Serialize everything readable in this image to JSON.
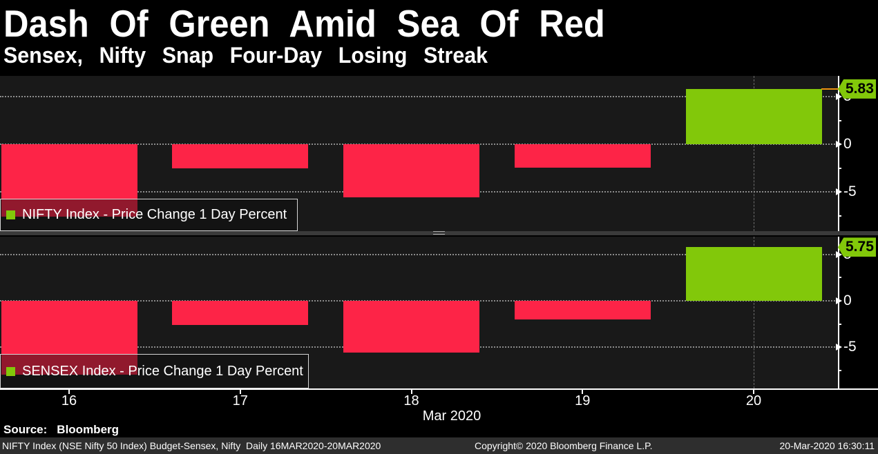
{
  "header": {
    "title": "Dash Of Green Amid Sea Of Red",
    "subtitle": "Sensex, Nifty Snap Four-Day Losing Streak"
  },
  "chart_data": [
    {
      "type": "bar",
      "name": "NIFTY",
      "legend": "NIFTY Index - Price Change 1 Day Percent",
      "categories": [
        "16",
        "17",
        "18",
        "19",
        "20"
      ],
      "values": [
        -7.61,
        -2.5,
        -5.56,
        -2.42,
        5.83
      ],
      "last_value_label": "5.83",
      "ylim": [
        -9.1,
        7.2
      ],
      "yticks": [
        5,
        0,
        -5
      ],
      "ytick_labels": [
        "5",
        "0",
        "-5"
      ],
      "minor_ticks": [
        2.5,
        -2.5,
        -7.5
      ],
      "highlight_index": 4,
      "marker_line": true,
      "grid": "dotted",
      "legend_position": "bottom-left",
      "xlabel": "Mar 2020",
      "ylabel": "Price Change 1 Day Percent"
    },
    {
      "type": "bar",
      "name": "SENSEX",
      "legend": "SENSEX Index - Price Change 1 Day Percent",
      "categories": [
        "16",
        "17",
        "18",
        "19",
        "20"
      ],
      "values": [
        -7.96,
        -2.58,
        -5.59,
        -2.01,
        5.75
      ],
      "last_value_label": "5.75",
      "ylim": [
        -9.41,
        6.89
      ],
      "yticks": [
        5,
        0,
        -5
      ],
      "ytick_labels": [
        "5",
        "0",
        "-5"
      ],
      "minor_ticks": [
        2.5,
        -2.5,
        -7.5
      ],
      "highlight_index": 4,
      "marker_line": false,
      "grid": "dotted",
      "legend_position": "bottom-left",
      "xlabel": "Mar 2020",
      "ylabel": "Price Change 1 Day Percent"
    }
  ],
  "xaxis": {
    "tick_labels": [
      "16",
      "17",
      "18",
      "19",
      "20"
    ],
    "month_label": "Mar 2020"
  },
  "colors": {
    "up": "#82c80a",
    "down": "#fd2447",
    "marker_line": "#ee9311",
    "axis": "#ffffff",
    "grid": "#8d8d8d",
    "tag_text": "#000000",
    "legend_swatch": "#82c80a"
  },
  "source_line": {
    "label": "Source:",
    "value": "Bloomberg"
  },
  "footer": {
    "left": "NIFTY Index (NSE Nifty 50 Index) Budget-Sensex, Nifty  Daily 16MAR2020-20MAR2020",
    "center": "Copyright© 2020 Bloomberg Finance L.P.",
    "right": "20-Mar-2020 16:30:11"
  }
}
